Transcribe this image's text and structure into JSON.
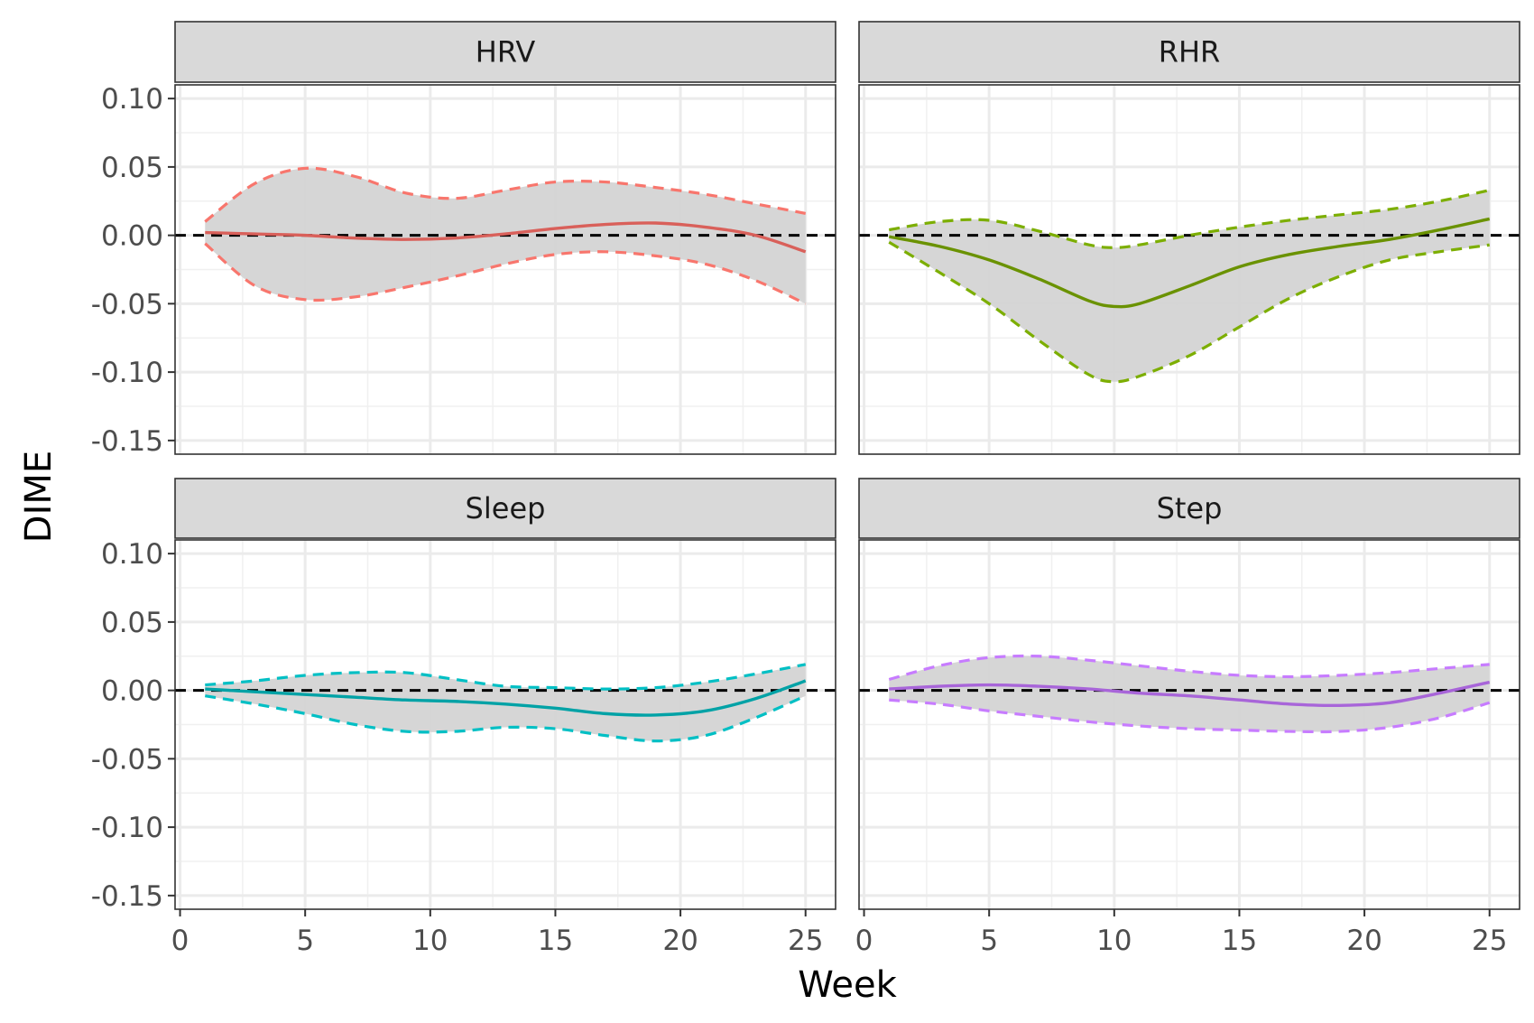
{
  "chart_data": {
    "type": "line",
    "facet_layout": "2x2",
    "xlabel": "Week",
    "ylabel": "DIME",
    "xlim": [
      -0.2,
      26.2
    ],
    "ylim": [
      -0.16,
      0.11
    ],
    "x_ticks": [
      0,
      5,
      10,
      15,
      20,
      25
    ],
    "x_tick_labels": [
      "0",
      "5",
      "10",
      "15",
      "20",
      "25"
    ],
    "y_ticks": [
      0.1,
      0.05,
      0.0,
      -0.05,
      -0.1,
      -0.15
    ],
    "y_tick_labels": [
      "0.10",
      "0.05",
      "0.00",
      "-0.05",
      "-0.10",
      "-0.15"
    ],
    "grid": true,
    "reference_line": {
      "y": 0,
      "style": "dashed",
      "color": "#000000"
    },
    "band_color": "#d4d4d4",
    "panels": [
      {
        "title": "HRV",
        "color": "#F8766D",
        "line_color": "#D9605A",
        "x": [
          1,
          3,
          5,
          7,
          9,
          11,
          13,
          15,
          17,
          19,
          21,
          23,
          25
        ],
        "estimate": [
          0.002,
          0.001,
          0.0,
          -0.002,
          -0.003,
          -0.002,
          0.001,
          0.005,
          0.008,
          0.009,
          0.006,
          0.0,
          -0.012
        ],
        "upper": [
          0.01,
          0.038,
          0.049,
          0.043,
          0.031,
          0.027,
          0.033,
          0.039,
          0.039,
          0.035,
          0.03,
          0.023,
          0.016
        ],
        "lower": [
          -0.006,
          -0.037,
          -0.047,
          -0.045,
          -0.038,
          -0.03,
          -0.021,
          -0.014,
          -0.012,
          -0.015,
          -0.021,
          -0.033,
          -0.05
        ]
      },
      {
        "title": "RHR",
        "color": "#7CAE00",
        "line_color": "#6A9200",
        "x": [
          1,
          3,
          5,
          7,
          9,
          10,
          11,
          13,
          15,
          17,
          19,
          21,
          23,
          25
        ],
        "estimate": [
          -0.001,
          -0.008,
          -0.018,
          -0.032,
          -0.048,
          -0.052,
          -0.05,
          -0.037,
          -0.023,
          -0.014,
          -0.008,
          -0.003,
          0.004,
          0.012
        ],
        "upper": [
          0.004,
          0.01,
          0.011,
          0.003,
          -0.007,
          -0.009,
          -0.007,
          0.0,
          0.006,
          0.011,
          0.015,
          0.019,
          0.025,
          0.033
        ],
        "lower": [
          -0.005,
          -0.027,
          -0.05,
          -0.077,
          -0.102,
          -0.107,
          -0.103,
          -0.088,
          -0.067,
          -0.046,
          -0.03,
          -0.018,
          -0.012,
          -0.007
        ]
      },
      {
        "title": "Sleep",
        "color": "#00BFC4",
        "line_color": "#00A2A6",
        "x": [
          1,
          3,
          5,
          7,
          9,
          11,
          13,
          15,
          17,
          19,
          21,
          23,
          25
        ],
        "estimate": [
          0.001,
          -0.001,
          -0.003,
          -0.005,
          -0.007,
          -0.008,
          -0.01,
          -0.013,
          -0.017,
          -0.018,
          -0.015,
          -0.006,
          0.007
        ],
        "upper": [
          0.004,
          0.007,
          0.011,
          0.013,
          0.013,
          0.008,
          0.003,
          0.002,
          0.001,
          0.002,
          0.006,
          0.012,
          0.019
        ],
        "lower": [
          -0.004,
          -0.01,
          -0.017,
          -0.025,
          -0.03,
          -0.03,
          -0.027,
          -0.028,
          -0.033,
          -0.037,
          -0.033,
          -0.02,
          -0.004
        ]
      },
      {
        "title": "Step",
        "color": "#C77CFF",
        "line_color": "#A865D9",
        "x": [
          1,
          3,
          5,
          7,
          9,
          11,
          13,
          15,
          17,
          19,
          21,
          23,
          25
        ],
        "estimate": [
          0.001,
          0.003,
          0.004,
          0.003,
          0.001,
          -0.002,
          -0.004,
          -0.007,
          -0.01,
          -0.011,
          -0.009,
          -0.002,
          0.006
        ],
        "upper": [
          0.008,
          0.018,
          0.024,
          0.025,
          0.022,
          0.018,
          0.014,
          0.011,
          0.01,
          0.011,
          0.013,
          0.016,
          0.019
        ],
        "lower": [
          -0.007,
          -0.01,
          -0.015,
          -0.019,
          -0.023,
          -0.026,
          -0.028,
          -0.029,
          -0.03,
          -0.03,
          -0.027,
          -0.02,
          -0.009
        ]
      }
    ]
  }
}
